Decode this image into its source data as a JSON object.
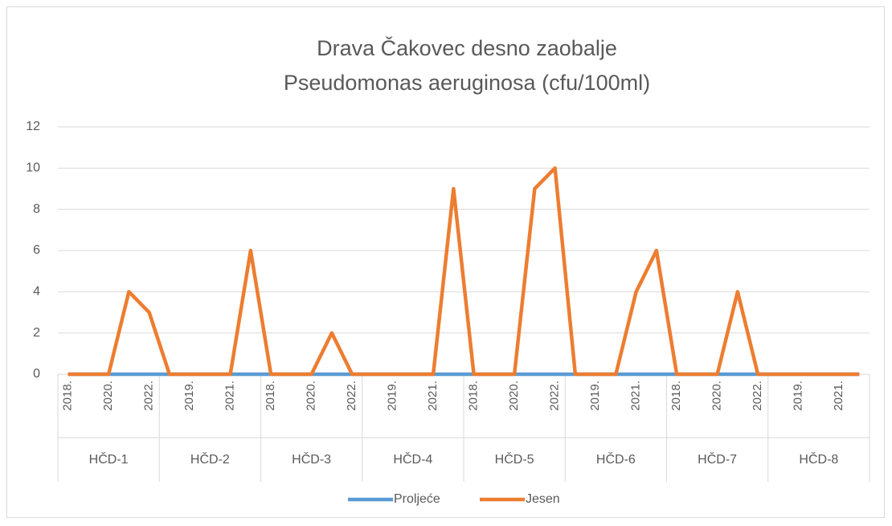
{
  "chart_data": {
    "type": "line",
    "title": [
      "Drava Čakovec desno zaobalje",
      "Pseudomonas aeruginosa (cfu/100ml)"
    ],
    "categories": [
      "2018.",
      null,
      "2020.",
      null,
      "2022.",
      null,
      "2019.",
      null,
      "2021.",
      null,
      "2018.",
      null,
      "2020.",
      null,
      "2022.",
      null,
      "2019.",
      null,
      "2021.",
      null,
      "2018.",
      null,
      "2020.",
      null,
      "2022.",
      null,
      "2019.",
      null,
      "2021.",
      null,
      "2018.",
      null,
      "2020.",
      null,
      "2022.",
      null,
      "2019.",
      null,
      "2021.",
      null
    ],
    "groups": [
      "HČD-1",
      "HČD-2",
      "HČD-3",
      "HČD-4",
      "HČD-5",
      "HČD-6",
      "HČD-7",
      "HČD-8"
    ],
    "series": [
      {
        "name": "Proljeće",
        "color": "#5b9bd5",
        "values": [
          0,
          0,
          0,
          0,
          0,
          0,
          0,
          0,
          0,
          0,
          0,
          0,
          0,
          0,
          0,
          0,
          0,
          0,
          0,
          0,
          0,
          0,
          0,
          0,
          0,
          0,
          0,
          0,
          0,
          0,
          0,
          0,
          0,
          0,
          0,
          0,
          0,
          0,
          0,
          0
        ]
      },
      {
        "name": "Jesen",
        "color": "#ed7d31",
        "values": [
          0,
          0,
          0,
          4,
          3,
          0,
          0,
          0,
          0,
          6,
          0,
          0,
          0,
          2,
          0,
          0,
          0,
          0,
          0,
          9,
          0,
          0,
          0,
          9,
          10,
          0,
          0,
          0,
          4,
          6,
          0,
          0,
          0,
          4,
          0,
          0,
          0,
          0,
          0,
          0
        ]
      }
    ],
    "ylim": [
      0,
      12
    ],
    "yticks": [
      0,
      2,
      4,
      6,
      8,
      10,
      12
    ],
    "grid": true,
    "legend": "bottom"
  }
}
